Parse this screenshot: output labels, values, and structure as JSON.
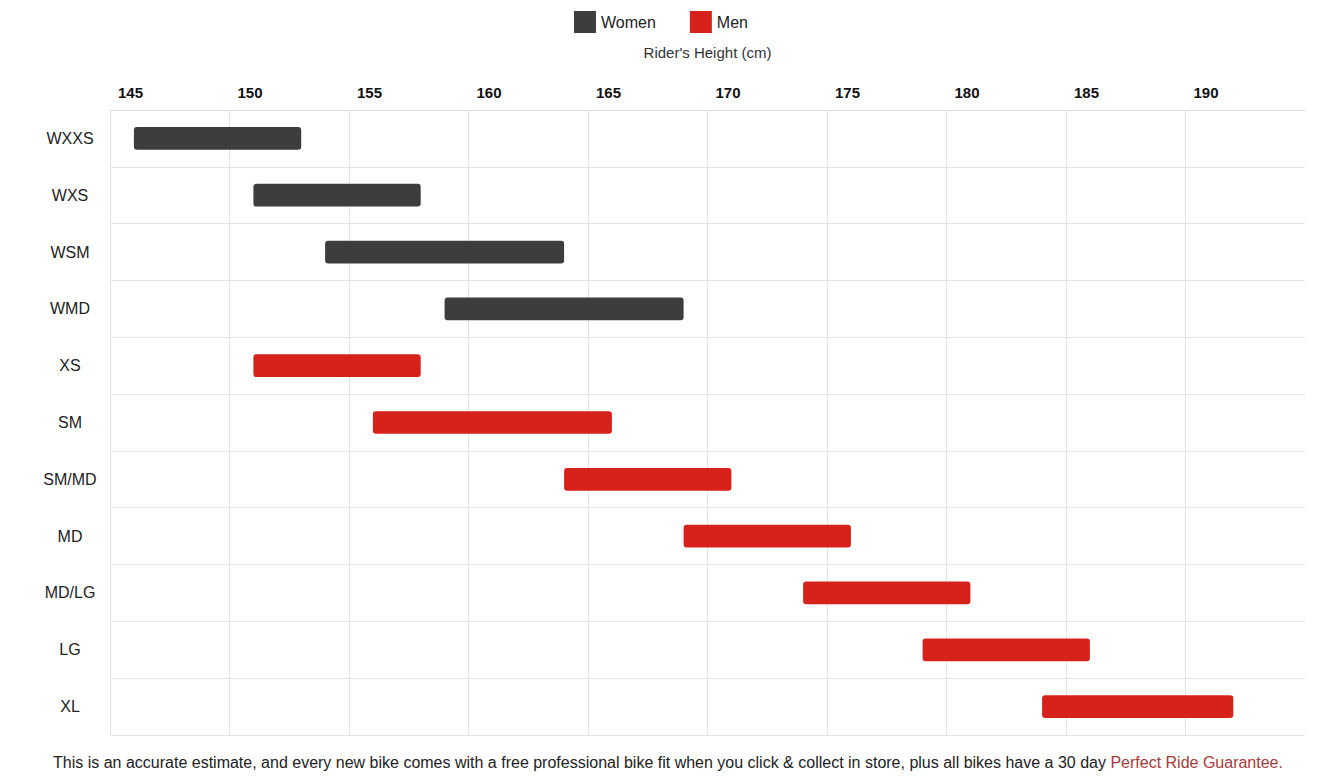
{
  "chart_data": {
    "type": "bar",
    "orientation": "horizontal",
    "xlabel": "Rider's Height (cm)",
    "categories": [
      "WXXS",
      "WXS",
      "WSM",
      "WMD",
      "XS",
      "SM",
      "SM/MD",
      "MD",
      "MD/LG",
      "LG",
      "XL"
    ],
    "series": [
      {
        "name": "Women",
        "color": "#3d3d3d",
        "low": [
          146,
          151,
          154,
          159,
          null,
          null,
          null,
          null,
          null,
          null,
          null
        ],
        "high": [
          153,
          158,
          164,
          169,
          null,
          null,
          null,
          null,
          null,
          null,
          null
        ]
      },
      {
        "name": "Men",
        "color": "#d7221c",
        "low": [
          null,
          null,
          null,
          null,
          151,
          156,
          164,
          169,
          174,
          179,
          184
        ],
        "high": [
          null,
          null,
          null,
          null,
          158,
          166,
          171,
          176,
          181,
          186,
          192
        ]
      }
    ],
    "xlim": [
      145,
      195
    ],
    "xticks": [
      145,
      150,
      155,
      160,
      165,
      170,
      175,
      180,
      185,
      190
    ],
    "grid": true,
    "legend": "top",
    "footnote": [
      {
        "text": "This is an accurate estimate, and every new bike comes with a free professional bike fit when you click & collect in store, plus all bikes have a 30 day",
        "color": "#222222"
      },
      {
        "text": "Perfect Ride Guarantee.",
        "color": "#a83a3a"
      }
    ]
  }
}
